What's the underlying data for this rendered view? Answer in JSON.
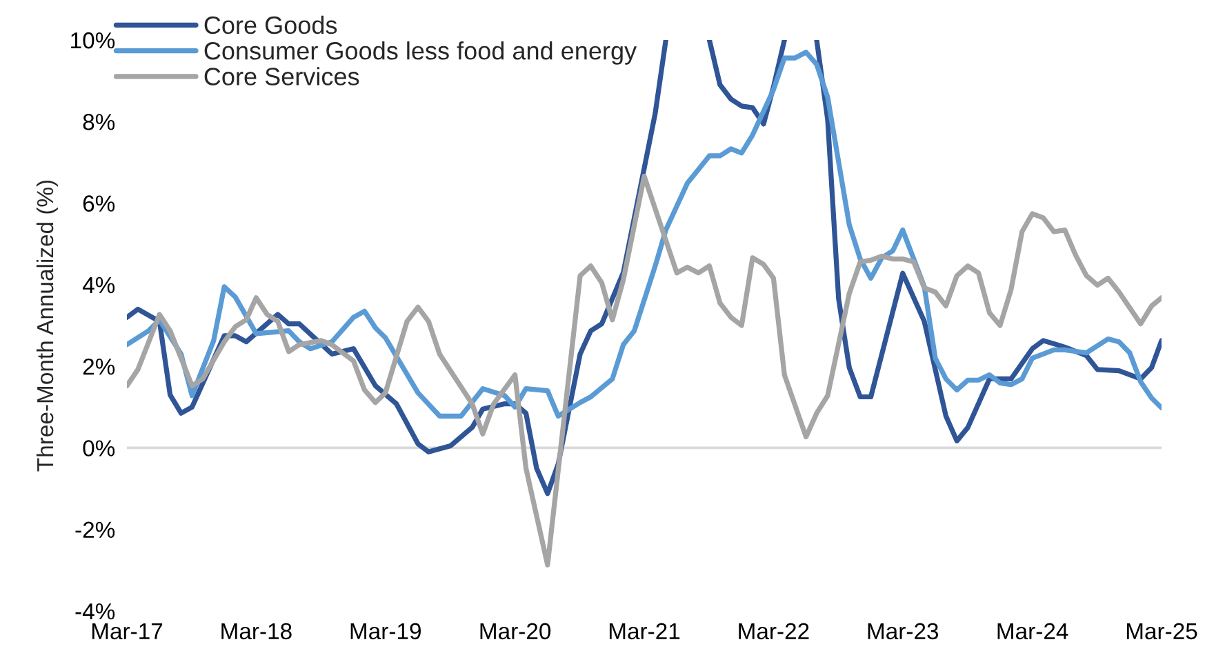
{
  "chart_data": {
    "type": "line",
    "ylabel": "Three-Month Annualized (%)",
    "xlim": [
      "2017-03",
      "2025-03"
    ],
    "xticks": [
      {
        "value": "2017-03",
        "label": "Mar-17"
      },
      {
        "value": "2018-03",
        "label": "Mar-18"
      },
      {
        "value": "2019-03",
        "label": "Mar-19"
      },
      {
        "value": "2020-03",
        "label": "Mar-20"
      },
      {
        "value": "2021-03",
        "label": "Mar-21"
      },
      {
        "value": "2022-03",
        "label": "Mar-22"
      },
      {
        "value": "2023-03",
        "label": "Mar-23"
      },
      {
        "value": "2024-03",
        "label": "Mar-24"
      },
      {
        "value": "2025-03",
        "label": "Mar-25"
      }
    ],
    "ylim": [
      -4,
      10
    ],
    "yticks": [
      {
        "value": -4,
        "label": "-4%"
      },
      {
        "value": -2,
        "label": "-2%"
      },
      {
        "value": 0,
        "label": "0%"
      },
      {
        "value": 2,
        "label": "2%"
      },
      {
        "value": 4,
        "label": "4%"
      },
      {
        "value": 6,
        "label": "6%"
      },
      {
        "value": 8,
        "label": "8%"
      },
      {
        "value": 10,
        "label": "10%"
      }
    ],
    "ref_lines": [
      {
        "axis": "y",
        "value": 0,
        "label": null,
        "color": "#d9d9d9"
      }
    ],
    "legend": "top left",
    "line_style": "solid",
    "series": [
      {
        "name": "Core Goods",
        "color": "#2f5597",
        "x": [
          "2017-03",
          "2017-04",
          "2017-06",
          "2017-07",
          "2017-08",
          "2017-09",
          "2017-12",
          "2018-01",
          "2018-02",
          "2018-05",
          "2018-06",
          "2018-07",
          "2018-10",
          "2018-12",
          "2019-02",
          "2019-04",
          "2019-06",
          "2019-07",
          "2019-09",
          "2019-11",
          "2019-12",
          "2020-02",
          "2020-03",
          "2020-04",
          "2020-05",
          "2020-06",
          "2020-07",
          "2020-09",
          "2020-10",
          "2020-11",
          "2021-01",
          "2021-04",
          "2021-05",
          "2021-07",
          "2021-09",
          "2021-10",
          "2021-11",
          "2021-12",
          "2022-01",
          "2022-02",
          "2022-03",
          "2022-04",
          "2022-05",
          "2022-07",
          "2022-08",
          "2022-09",
          "2022-10",
          "2022-11",
          "2022-12",
          "2023-03",
          "2023-05",
          "2023-07",
          "2023-08",
          "2023-09",
          "2023-11",
          "2024-01",
          "2024-03",
          "2024-04",
          "2024-06",
          "2024-08",
          "2024-09",
          "2024-11",
          "2025-01",
          "2025-02",
          "2025-03"
        ],
        "values": [
          3.2,
          3.4,
          3.1,
          1.3,
          0.85,
          1.0,
          2.75,
          2.75,
          2.6,
          3.27,
          3.04,
          3.04,
          2.3,
          2.43,
          1.52,
          1.08,
          0.1,
          -0.1,
          0.05,
          0.5,
          0.95,
          1.08,
          1.08,
          0.85,
          -0.5,
          -1.12,
          -0.4,
          2.3,
          2.87,
          3.04,
          4.3,
          8.2,
          10,
          null,
          10,
          8.9,
          8.55,
          8.38,
          8.34,
          7.94,
          8.85,
          10,
          null,
          10,
          8.05,
          3.65,
          1.97,
          1.25,
          1.25,
          4.28,
          3.1,
          0.78,
          0.17,
          0.5,
          1.69,
          1.69,
          2.43,
          2.63,
          2.47,
          2.26,
          1.92,
          1.89,
          1.69,
          1.97,
          2.63
        ]
      },
      {
        "name": "Consumer Goods less food and energy",
        "color": "#5b9bd5",
        "x": [
          "2017-03",
          "2017-05",
          "2017-06",
          "2017-08",
          "2017-09",
          "2017-11",
          "2017-12",
          "2018-01",
          "2018-03",
          "2018-06",
          "2018-07",
          "2018-08",
          "2018-10",
          "2018-12",
          "2019-01",
          "2019-02",
          "2019-03",
          "2019-06",
          "2019-08",
          "2019-10",
          "2019-12",
          "2020-02",
          "2020-03",
          "2020-04",
          "2020-06",
          "2020-07",
          "2020-09",
          "2020-10",
          "2020-12",
          "2021-01",
          "2021-02",
          "2021-04",
          "2021-05",
          "2021-07",
          "2021-09",
          "2021-10",
          "2021-11",
          "2021-12",
          "2022-01",
          "2022-03",
          "2022-04",
          "2022-05",
          "2022-06",
          "2022-07",
          "2022-08",
          "2022-10",
          "2022-11",
          "2022-12",
          "2023-01",
          "2023-02",
          "2023-03",
          "2023-05",
          "2023-06",
          "2023-07",
          "2023-08",
          "2023-09",
          "2023-10",
          "2023-11",
          "2023-12",
          "2024-01",
          "2024-02",
          "2024-03",
          "2024-05",
          "2024-06",
          "2024-08",
          "2024-10",
          "2024-11",
          "2024-12",
          "2025-01",
          "2025-02",
          "2025-03"
        ],
        "values": [
          2.53,
          2.87,
          3.14,
          2.3,
          1.28,
          2.63,
          3.95,
          3.7,
          2.8,
          2.87,
          2.6,
          2.43,
          2.6,
          3.2,
          3.35,
          2.94,
          2.7,
          1.35,
          0.78,
          0.78,
          1.45,
          1.28,
          1.0,
          1.45,
          1.4,
          0.78,
          1.11,
          1.25,
          1.69,
          2.53,
          2.87,
          4.46,
          5.34,
          6.49,
          7.16,
          7.16,
          7.33,
          7.23,
          7.67,
          8.78,
          9.56,
          9.56,
          9.7,
          9.4,
          8.6,
          5.47,
          4.63,
          4.16,
          4.66,
          4.83,
          5.34,
          3.95,
          2.2,
          1.69,
          1.42,
          1.66,
          1.66,
          1.79,
          1.59,
          1.55,
          1.69,
          2.2,
          2.4,
          2.4,
          2.33,
          2.67,
          2.6,
          2.33,
          1.62,
          1.22,
          0.98
        ]
      },
      {
        "name": "Core Services",
        "color": "#a5a5a5",
        "x": [
          "2017-03",
          "2017-04",
          "2017-06",
          "2017-07",
          "2017-08",
          "2017-09",
          "2017-10",
          "2017-12",
          "2018-01",
          "2018-02",
          "2018-03",
          "2018-04",
          "2018-05",
          "2018-06",
          "2018-07",
          "2018-09",
          "2018-10",
          "2018-12",
          "2019-01",
          "2019-02",
          "2019-03",
          "2019-05",
          "2019-06",
          "2019-07",
          "2019-08",
          "2019-11",
          "2019-12",
          "2020-01",
          "2020-03",
          "2020-04",
          "2020-06",
          "2020-09",
          "2020-10",
          "2020-11",
          "2020-12",
          "2021-01",
          "2021-03",
          "2021-06",
          "2021-07",
          "2021-08",
          "2021-09",
          "2021-10",
          "2021-11",
          "2021-12",
          "2022-01",
          "2022-02",
          "2022-03",
          "2022-04",
          "2022-06",
          "2022-07",
          "2022-08",
          "2022-10",
          "2022-11",
          "2022-12",
          "2023-01",
          "2023-02",
          "2023-03",
          "2023-04",
          "2023-05",
          "2023-06",
          "2023-07",
          "2023-08",
          "2023-09",
          "2023-10",
          "2023-11",
          "2023-12",
          "2024-01",
          "2024-02",
          "2024-03",
          "2024-04",
          "2024-05",
          "2024-06",
          "2024-07",
          "2024-08",
          "2024-09",
          "2024-10",
          "2024-11",
          "2025-01",
          "2025-02",
          "2025-03"
        ],
        "values": [
          1.52,
          1.92,
          3.27,
          2.87,
          2.2,
          1.52,
          1.69,
          2.6,
          2.97,
          3.14,
          3.68,
          3.27,
          3.1,
          2.36,
          2.53,
          2.63,
          2.53,
          2.13,
          1.42,
          1.11,
          1.35,
          3.1,
          3.45,
          3.1,
          2.3,
          1.08,
          0.34,
          1.08,
          1.79,
          -0.5,
          -2.87,
          4.22,
          4.46,
          4.05,
          3.14,
          4.12,
          6.66,
          4.29,
          4.43,
          4.29,
          4.46,
          3.55,
          3.2,
          3.0,
          4.66,
          4.5,
          4.16,
          1.79,
          0.27,
          0.85,
          1.28,
          3.78,
          4.56,
          4.6,
          4.7,
          4.63,
          4.63,
          4.56,
          3.92,
          3.82,
          3.48,
          4.22,
          4.46,
          4.29,
          3.31,
          3.0,
          3.88,
          5.3,
          5.74,
          5.64,
          5.3,
          5.34,
          4.73,
          4.22,
          3.99,
          4.16,
          3.82,
          3.04,
          3.48,
          3.68
        ]
      }
    ]
  }
}
